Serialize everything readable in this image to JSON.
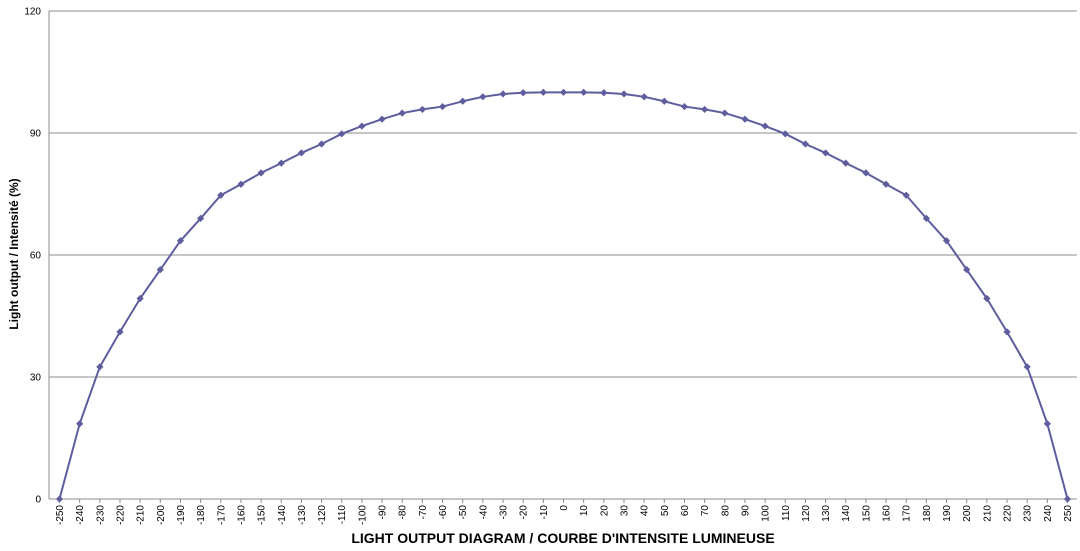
{
  "chart_data": {
    "type": "line",
    "xlabel": "LIGHT OUTPUT DIAGRAM / COURBE D'INTENSITE LUMINEUSE",
    "ylabel": "Light output / Intensité (%)",
    "ylim": [
      0,
      120
    ],
    "yticks": [
      "0",
      "30",
      "60",
      "90",
      "120"
    ],
    "grid": "horizontal",
    "colors": {
      "series": "#5E5D9E",
      "grid": "#8C8C8C"
    },
    "categories": [
      "-250",
      "-240",
      "-230",
      "-220",
      "-210",
      "-200",
      "-190",
      "-180",
      "-170",
      "-160",
      "-150",
      "-140",
      "-130",
      "-120",
      "-110",
      "-100",
      "-90",
      "-80",
      "-70",
      "-60",
      "-50",
      "-40",
      "-30",
      "-20",
      "-10",
      "0",
      "10",
      "20",
      "30",
      "40",
      "50",
      "60",
      "70",
      "80",
      "90",
      "100",
      "110",
      "120",
      "130",
      "140",
      "150",
      "160",
      "170",
      "180",
      "190",
      "200",
      "210",
      "220",
      "230",
      "240",
      "250"
    ],
    "series": [
      {
        "values": [
          0,
          18.5,
          32.5,
          41.1,
          49.3,
          56.4,
          63.5,
          69.0,
          74.7,
          77.4,
          80.2,
          82.6,
          85.1,
          87.3,
          89.8,
          91.7,
          93.4,
          94.9,
          95.8,
          96.5,
          97.8,
          98.9,
          99.6,
          99.9,
          100.0,
          100.0,
          100.0,
          99.9,
          99.6,
          98.9,
          97.8,
          96.5,
          95.8,
          94.9,
          93.4,
          91.7,
          89.8,
          87.3,
          85.1,
          82.6,
          80.2,
          77.4,
          74.7,
          69.0,
          63.5,
          56.4,
          49.3,
          41.1,
          32.5,
          18.5,
          0
        ]
      }
    ]
  }
}
